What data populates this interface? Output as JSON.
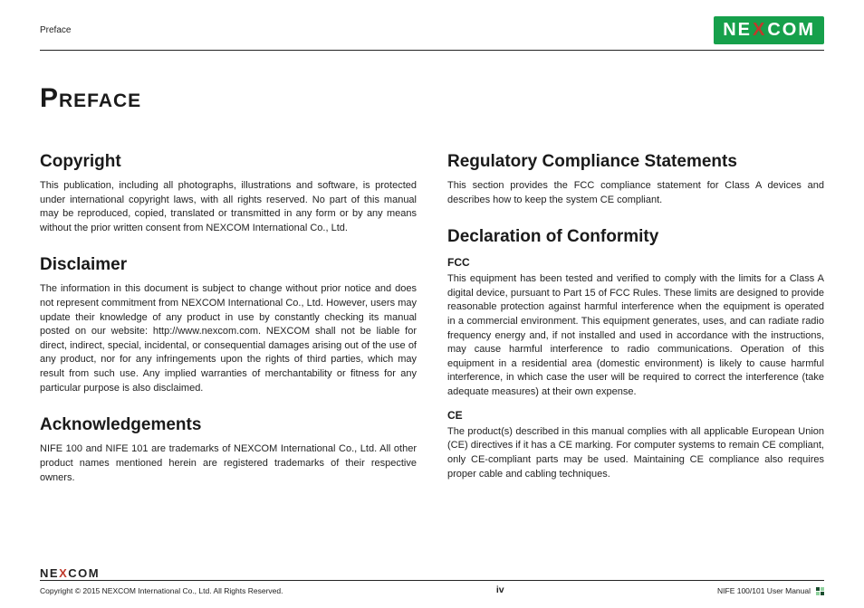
{
  "header": {
    "section_label": "Preface",
    "brand_before": "NE",
    "brand_x": "X",
    "brand_after": "COM"
  },
  "page_title": "Preface",
  "left_column": {
    "copyright": {
      "heading": "Copyright",
      "body": "This publication, including all photographs, illustrations and software, is protected under international copyright laws, with all rights reserved. No part of this manual may be reproduced, copied, translated or transmitted in any form or by any means without the prior written consent from NEXCOM International Co., Ltd."
    },
    "disclaimer": {
      "heading": "Disclaimer",
      "body": "The information in this document is subject to change without prior notice and does not represent commitment from NEXCOM International Co., Ltd. However, users may update their knowledge of any product in use by constantly checking its manual posted on our website: http://www.nexcom.com. NEXCOM shall not be liable for direct, indirect, special, incidental, or consequential damages arising out of the use of any product, nor for any infringements upon the rights of third parties, which may result from such use. Any implied warranties of merchantability or fitness for any particular purpose is also disclaimed."
    },
    "ack": {
      "heading": "Acknowledgements",
      "body": "NIFE 100 and NIFE 101 are trademarks of NEXCOM International Co., Ltd. All other product names mentioned herein are registered trademarks of their respective owners."
    }
  },
  "right_column": {
    "reg": {
      "heading": "Regulatory Compliance Statements",
      "body": "This section provides the FCC compliance statement for Class A devices and describes how to keep the system CE compliant."
    },
    "decl": {
      "heading": "Declaration of Conformity",
      "fcc_label": "FCC",
      "fcc_body": "This equipment has been tested and verified to comply with the limits for a Class A digital device, pursuant to Part 15 of FCC Rules. These limits are designed to provide reasonable protection against harmful interference when the equipment is operated in a commercial environment. This equipment generates, uses, and can radiate radio frequency energy and, if not installed and used in accordance with the instructions, may cause harmful interference to radio communications. Operation of this equipment in a residential area (domestic environment) is likely to cause harmful interference, in which case the user will be required to correct the interference (take adequate measures) at their own expense.",
      "ce_label": "CE",
      "ce_body": "The product(s) described in this manual complies with all applicable European Union (CE) directives if it has a CE marking. For computer systems to remain CE compliant, only CE-compliant parts may be used. Maintaining CE compliance also requires proper cable and cabling techniques."
    }
  },
  "footer": {
    "brand_before": "NE",
    "brand_x": "X",
    "brand_after": "COM",
    "copyright_line": "Copyright © 2015 NEXCOM International Co., Ltd. All Rights Reserved.",
    "page_number": "iv",
    "manual_name": "NIFE 100/101 User Manual"
  }
}
